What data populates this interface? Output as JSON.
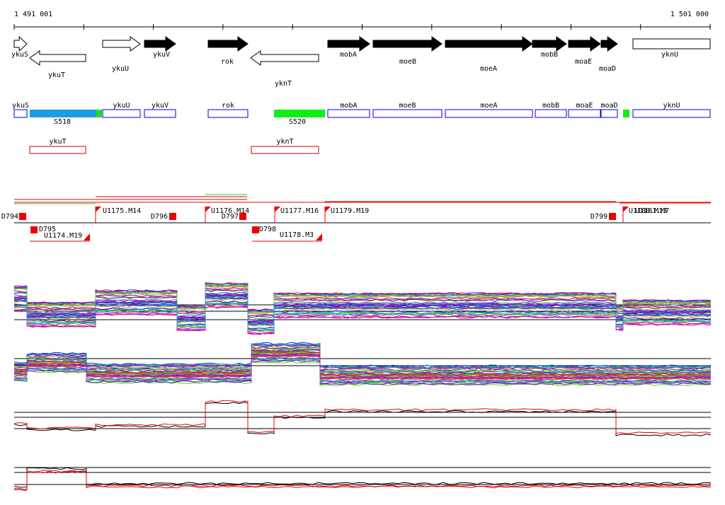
{
  "ruler": {
    "start": "1 491 001",
    "end": "1 501 000"
  },
  "gene_arrows": [
    "ykuS",
    "ykuT",
    "ykuU",
    "ykuV",
    "rok",
    "yknT",
    "mobA",
    "moeB",
    "moeA",
    "mobB",
    "moaE",
    "moaD",
    "yknU"
  ],
  "gene_boxes": [
    "ykuS",
    "ykuU",
    "ykuV",
    "rok",
    "mobA",
    "moeB",
    "moeA",
    "mobB",
    "moaE",
    "moaD",
    "yknU"
  ],
  "segments": [
    "S518",
    "S520"
  ],
  "antisense": [
    "ykuT",
    "yknT"
  ],
  "features": [
    "D794",
    "D795",
    "U1174.M19",
    "U1175.M14",
    "D796",
    "U1176.M14",
    "D797",
    "D798",
    "U1177.M16",
    "U1178.M3",
    "U1179.M19",
    "D799",
    "U1180.M13",
    "U1181.M7"
  ]
}
